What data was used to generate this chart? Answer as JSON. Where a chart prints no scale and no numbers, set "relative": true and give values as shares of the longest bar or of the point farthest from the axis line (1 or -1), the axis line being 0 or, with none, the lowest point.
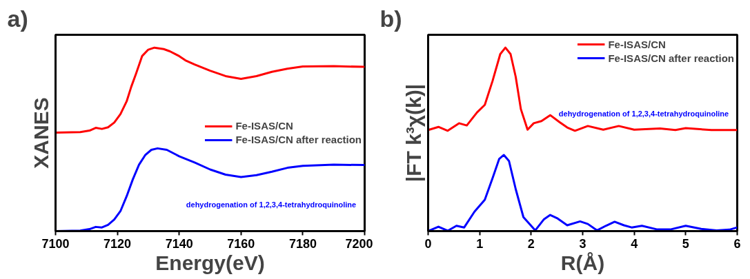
{
  "chart_data": [
    {
      "type": "line",
      "title": "a)",
      "xlabel": "Energy(eV)",
      "ylabel": "XANES",
      "relative": true,
      "xlim": [
        7100,
        7200
      ],
      "xticks": [
        7100,
        7120,
        7140,
        7160,
        7180,
        7200
      ],
      "legend": "right",
      "annotations": [
        "dehydrogenation of 1,2,3,4-tetrahydroquinoline"
      ],
      "series": [
        {
          "name": "Fe-ISAS/CN",
          "color": "#ff0000",
          "x": [
            7100,
            7108,
            7111,
            7113,
            7115,
            7117,
            7119,
            7121,
            7123,
            7124.5,
            7126,
            7128,
            7130,
            7132,
            7135,
            7137,
            7140,
            7142,
            7145,
            7150,
            7155,
            7160,
            7165,
            7170,
            7175,
            7180,
            7190,
            7200
          ],
          "values": [
            0.537,
            0.54,
            0.548,
            0.563,
            0.557,
            0.566,
            0.592,
            0.638,
            0.707,
            0.787,
            0.856,
            0.954,
            0.989,
            1.0,
            0.992,
            0.98,
            0.954,
            0.931,
            0.908,
            0.874,
            0.845,
            0.83,
            0.845,
            0.868,
            0.885,
            0.897,
            0.899,
            0.895
          ]
        },
        {
          "name": "Fe-ISAS/CN after reaction",
          "color": "#0000ff",
          "x": [
            7100,
            7108,
            7111,
            7113,
            7115,
            7117,
            7119,
            7121,
            7123,
            7125,
            7127,
            7129,
            7131,
            7133,
            7136,
            7140,
            7145,
            7150,
            7155,
            7160,
            7165,
            7170,
            7175,
            7180,
            7190,
            7200
          ],
          "values": [
            0,
            0.003,
            0.011,
            0.023,
            0.02,
            0.034,
            0.063,
            0.109,
            0.19,
            0.282,
            0.362,
            0.414,
            0.443,
            0.451,
            0.443,
            0.408,
            0.374,
            0.336,
            0.308,
            0.295,
            0.305,
            0.324,
            0.345,
            0.356,
            0.362,
            0.36
          ]
        }
      ]
    },
    {
      "type": "line",
      "title": "b)",
      "xlabel": "R(Å)",
      "ylabel": "|FT k³χ(k)|",
      "relative": true,
      "xlim": [
        0,
        6
      ],
      "xticks": [
        0,
        1,
        2,
        3,
        4,
        5,
        6
      ],
      "legend": "top right",
      "annotations": [
        "dehydrogenation of 1,2,3,4-tetrahydroquinoline"
      ],
      "series": [
        {
          "name": "Fe-ISAS/CN",
          "color": "#ff0000",
          "x": [
            0,
            0.2,
            0.38,
            0.6,
            0.75,
            0.95,
            1.1,
            1.25,
            1.4,
            1.5,
            1.6,
            1.7,
            1.8,
            1.93,
            2.05,
            2.2,
            2.37,
            2.55,
            2.7,
            2.85,
            3.1,
            3.4,
            3.7,
            4.0,
            4.5,
            4.8,
            5.0,
            5.5,
            6.0
          ],
          "values": [
            0.551,
            0.568,
            0.547,
            0.588,
            0.576,
            0.647,
            0.688,
            0.818,
            0.965,
            1.0,
            0.965,
            0.841,
            0.665,
            0.553,
            0.588,
            0.6,
            0.632,
            0.594,
            0.565,
            0.547,
            0.573,
            0.553,
            0.573,
            0.553,
            0.559,
            0.551,
            0.561,
            0.551,
            0.551
          ]
        },
        {
          "name": "Fe-ISAS/CN after reaction",
          "color": "#0000ff",
          "x": [
            0,
            0.2,
            0.38,
            0.55,
            0.7,
            0.9,
            1.1,
            1.25,
            1.38,
            1.47,
            1.57,
            1.7,
            1.85,
            2.08,
            2.25,
            2.37,
            2.5,
            2.7,
            2.95,
            3.1,
            3.28,
            3.45,
            3.62,
            3.8,
            3.95,
            4.15,
            4.45,
            4.7,
            5.0,
            5.3,
            5.6,
            5.85,
            6.0
          ],
          "values": [
            0,
            0.024,
            0.002,
            0.029,
            0.02,
            0.106,
            0.171,
            0.288,
            0.394,
            0.415,
            0.382,
            0.229,
            0.076,
            0.004,
            0.065,
            0.088,
            0.071,
            0.032,
            0.053,
            0.039,
            0.004,
            0.029,
            0.051,
            0.032,
            0.02,
            0.029,
            0.009,
            0.009,
            0.029,
            0.012,
            0.004,
            0.008,
            0.02
          ]
        }
      ]
    }
  ]
}
